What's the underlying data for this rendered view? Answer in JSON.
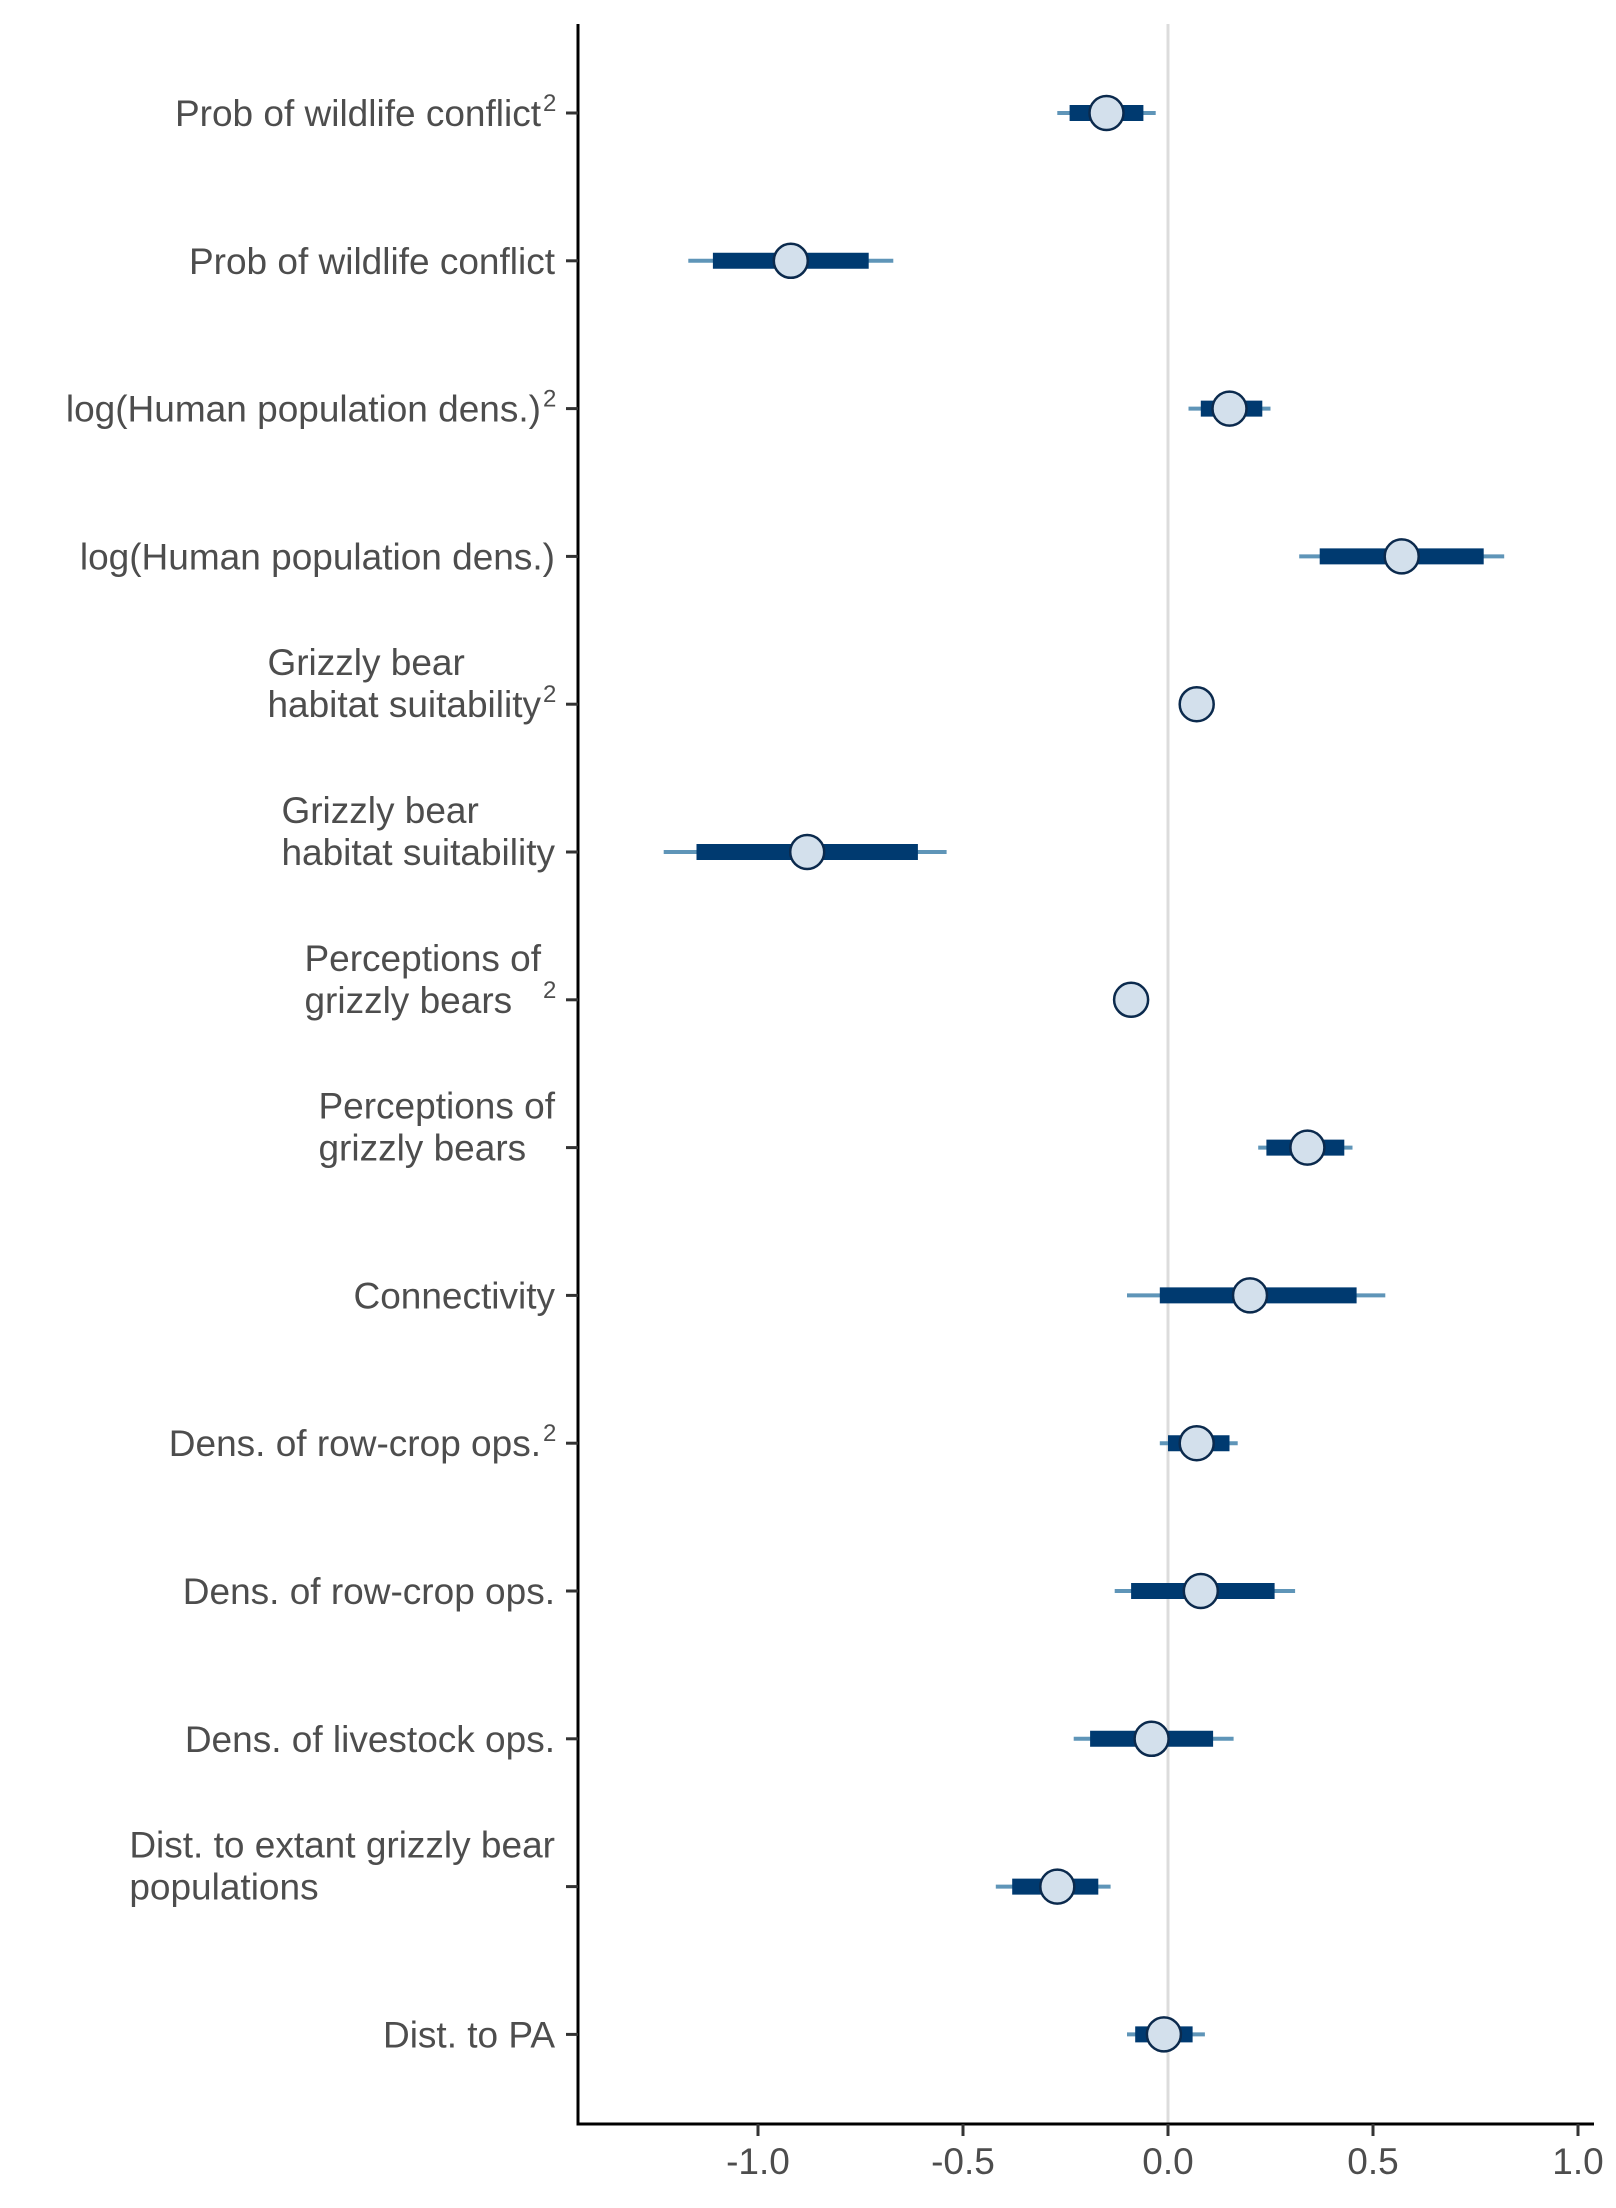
{
  "chart_data": {
    "type": "forest",
    "title": "",
    "xlabel": "",
    "ylabel": "",
    "xlim": [
      -1.45,
      1.05
    ],
    "xticks": [
      "-1.0",
      "-0.5",
      "0.0",
      "0.5",
      "1.0"
    ],
    "xtick_values": [
      -1.0,
      -0.5,
      0.0,
      0.5,
      1.0
    ],
    "reference_line": 0,
    "grid": false,
    "colors": {
      "inner_interval": "#003a70",
      "outer_interval": "#5f95b8",
      "point_fill": "#d3e0ec",
      "point_stroke": "#0b2a4d",
      "reference_line": "#dcdcdc",
      "axis": "#000000",
      "text": "#4d4d4d"
    },
    "terms": [
      {
        "label": [
          "Prob of wildlife conflict"
        ],
        "superscript": "2",
        "estimate": -0.15,
        "inner": [
          -0.24,
          -0.06
        ],
        "outer": [
          -0.27,
          -0.03
        ]
      },
      {
        "label": [
          "Prob of wildlife conflict"
        ],
        "superscript": "",
        "estimate": -0.92,
        "inner": [
          -1.11,
          -0.73
        ],
        "outer": [
          -1.17,
          -0.67
        ]
      },
      {
        "label": [
          "log(Human population dens.)"
        ],
        "superscript": "2",
        "estimate": 0.15,
        "inner": [
          0.08,
          0.23
        ],
        "outer": [
          0.05,
          0.25
        ]
      },
      {
        "label": [
          "log(Human population dens.)"
        ],
        "superscript": "",
        "estimate": 0.57,
        "inner": [
          0.37,
          0.77
        ],
        "outer": [
          0.32,
          0.82
        ]
      },
      {
        "label": [
          "Grizzly bear",
          "habitat suitability"
        ],
        "superscript": "2",
        "estimate": 0.07,
        "inner": [
          0.07,
          0.07
        ],
        "outer": [
          0.07,
          0.07
        ]
      },
      {
        "label": [
          "Grizzly bear",
          "habitat suitability"
        ],
        "superscript": "",
        "estimate": -0.88,
        "inner": [
          -1.15,
          -0.61
        ],
        "outer": [
          -1.23,
          -0.54
        ]
      },
      {
        "label": [
          "Perceptions of",
          "grizzly bears"
        ],
        "superscript": "2",
        "estimate": -0.09,
        "inner": [
          -0.09,
          -0.09
        ],
        "outer": [
          -0.09,
          -0.09
        ]
      },
      {
        "label": [
          "Perceptions of",
          "grizzly bears"
        ],
        "superscript": "",
        "estimate": 0.34,
        "inner": [
          0.24,
          0.43
        ],
        "outer": [
          0.22,
          0.45
        ]
      },
      {
        "label": [
          "Connectivity"
        ],
        "superscript": "",
        "estimate": 0.2,
        "inner": [
          -0.02,
          0.46
        ],
        "outer": [
          -0.1,
          0.53
        ]
      },
      {
        "label": [
          "Dens. of row-crop ops."
        ],
        "superscript": "2",
        "estimate": 0.07,
        "inner": [
          0.0,
          0.15
        ],
        "outer": [
          -0.02,
          0.17
        ]
      },
      {
        "label": [
          "Dens. of row-crop ops."
        ],
        "superscript": "",
        "estimate": 0.08,
        "inner": [
          -0.09,
          0.26
        ],
        "outer": [
          -0.13,
          0.31
        ]
      },
      {
        "label": [
          "Dens. of livestock ops."
        ],
        "superscript": "",
        "estimate": -0.04,
        "inner": [
          -0.19,
          0.11
        ],
        "outer": [
          -0.23,
          0.16
        ]
      },
      {
        "label": [
          "Dist. to extant grizzly bear",
          "populations"
        ],
        "superscript": "",
        "estimate": -0.27,
        "inner": [
          -0.38,
          -0.17
        ],
        "outer": [
          -0.42,
          -0.14
        ]
      },
      {
        "label": [
          "Dist. to PA"
        ],
        "superscript": "",
        "estimate": -0.01,
        "inner": [
          -0.08,
          0.06
        ],
        "outer": [
          -0.1,
          0.09
        ]
      }
    ]
  }
}
